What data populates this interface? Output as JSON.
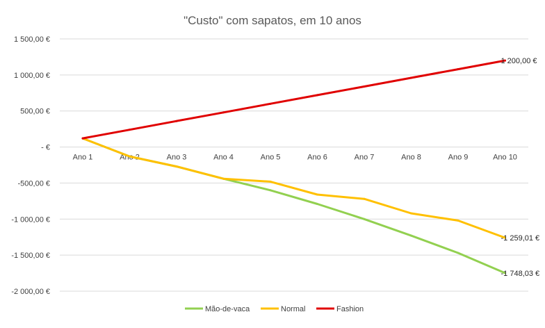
{
  "colors": {
    "sheet_grid": "#e1e1e1",
    "chart_bg": "#ffffff",
    "gridline": "#d9d9d9",
    "zero_axis": "#d9d9d9"
  },
  "chart_data": {
    "type": "line",
    "title": "\"Custo\" com sapatos, em 10 anos",
    "xlabel": "",
    "ylabel": "",
    "categories": [
      "Ano 1",
      "Ano 2",
      "Ano 3",
      "Ano 4",
      "Ano 5",
      "Ano 6",
      "Ano 7",
      "Ano 8",
      "Ano 9",
      "Ano 10"
    ],
    "ylim": [
      -2000,
      1500
    ],
    "yticks": [
      1500,
      1000,
      500,
      0,
      -500,
      -1000,
      -1500,
      -2000
    ],
    "ytick_labels": [
      "1 500,00 €",
      "1 000,00 €",
      "500,00 €",
      "-   €",
      "-500,00 €",
      "-1 000,00 €",
      "-1 500,00 €",
      "-2 000,00 €"
    ],
    "grid": true,
    "legend_position": "bottom",
    "series": [
      {
        "name": "Mão-de-vaca",
        "color": "#92d050",
        "values": [
          120,
          -130,
          -270,
          -440,
          -600,
          -790,
          -1000,
          -1230,
          -1470,
          -1748.03
        ],
        "end_label": "-1 748,03 €"
      },
      {
        "name": "Normal",
        "color": "#ffc000",
        "values": [
          120,
          -130,
          -270,
          -440,
          -480,
          -660,
          -720,
          -920,
          -1020,
          -1259.01
        ],
        "end_label": "-1 259,01 €"
      },
      {
        "name": "Fashion",
        "color": "#e00000",
        "values": [
          120,
          240,
          360,
          480,
          600,
          720,
          840,
          960,
          1080,
          1200
        ],
        "end_label": "1 200,00 €"
      }
    ]
  }
}
